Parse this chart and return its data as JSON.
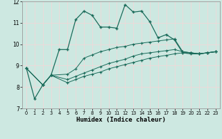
{
  "xlabel": "Humidex (Indice chaleur)",
  "xlim": [
    -0.5,
    23.5
  ],
  "ylim": [
    7,
    12
  ],
  "yticks": [
    7,
    8,
    9,
    10,
    11,
    12
  ],
  "xticks": [
    0,
    1,
    2,
    3,
    4,
    5,
    6,
    7,
    8,
    9,
    10,
    11,
    12,
    13,
    14,
    15,
    16,
    17,
    18,
    19,
    20,
    21,
    22,
    23
  ],
  "bg_color": "#cde8e1",
  "line_color": "#1a6b5a",
  "grid_color": "#f0d8d8",
  "line1_x": [
    0,
    1,
    2,
    3,
    4,
    5,
    6,
    7,
    8,
    9,
    10,
    11,
    12,
    13,
    14,
    15,
    16,
    17,
    18,
    19,
    20,
    21,
    22,
    23
  ],
  "line1_y": [
    8.88,
    7.45,
    8.1,
    8.55,
    9.75,
    9.75,
    11.15,
    11.55,
    11.35,
    10.8,
    10.8,
    10.75,
    11.85,
    11.5,
    11.55,
    11.05,
    10.3,
    10.45,
    10.2,
    9.6,
    9.55,
    9.55,
    9.6,
    9.65
  ],
  "line2_x": [
    0,
    2,
    3,
    5,
    6,
    7,
    8,
    9,
    10,
    11,
    12,
    13,
    14,
    15,
    16,
    17,
    18,
    19,
    20,
    21,
    22,
    23
  ],
  "line2_y": [
    8.88,
    8.1,
    8.55,
    8.6,
    8.85,
    9.35,
    9.5,
    9.65,
    9.75,
    9.85,
    9.9,
    10.0,
    10.05,
    10.1,
    10.15,
    10.2,
    10.25,
    9.65,
    9.6,
    9.55,
    9.6,
    9.65
  ],
  "line3_x": [
    0,
    2,
    3,
    5,
    6,
    7,
    8,
    9,
    10,
    11,
    12,
    13,
    14,
    15,
    16,
    17,
    18,
    19,
    20,
    21,
    22,
    23
  ],
  "line3_y": [
    8.88,
    8.1,
    8.55,
    8.35,
    8.5,
    8.65,
    8.8,
    8.95,
    9.1,
    9.2,
    9.3,
    9.45,
    9.55,
    9.6,
    9.65,
    9.7,
    9.75,
    9.65,
    9.6,
    9.55,
    9.6,
    9.65
  ],
  "line4_x": [
    0,
    2,
    3,
    5,
    6,
    7,
    8,
    9,
    10,
    11,
    12,
    13,
    14,
    15,
    16,
    17,
    18,
    19,
    20,
    21,
    22,
    23
  ],
  "line4_y": [
    8.88,
    8.1,
    8.55,
    8.2,
    8.35,
    8.5,
    8.6,
    8.7,
    8.85,
    8.95,
    9.05,
    9.15,
    9.25,
    9.35,
    9.42,
    9.48,
    9.55,
    9.6,
    9.6,
    9.55,
    9.6,
    9.65
  ]
}
